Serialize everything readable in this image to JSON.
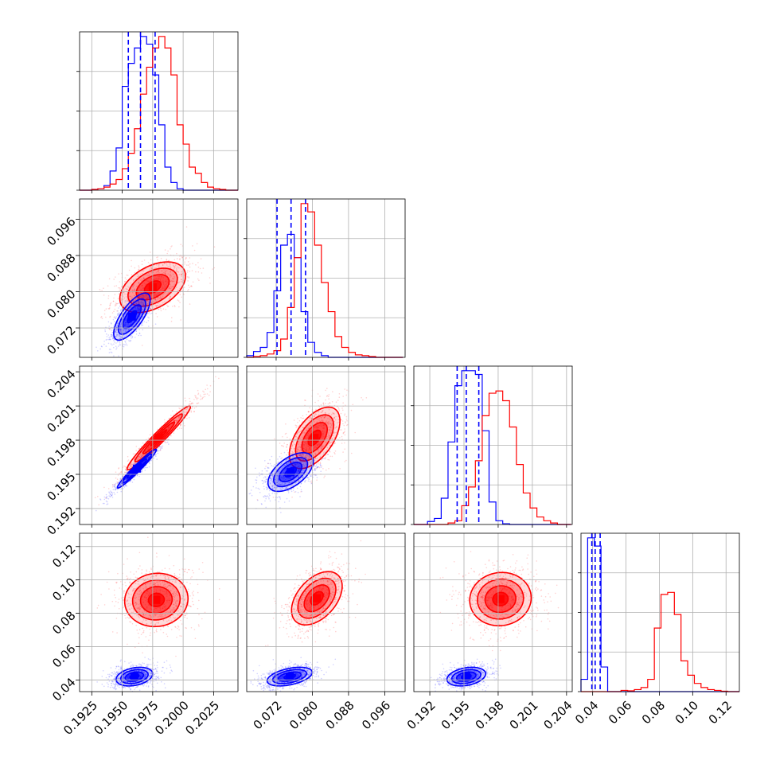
{
  "chart_data": {
    "type": "corner",
    "title": "",
    "grid": true,
    "series": [
      {
        "name": "",
        "color": "#0000ff"
      },
      {
        "name": "",
        "color": "#ff0000"
      }
    ],
    "parameters": [
      {
        "ylim": null,
        "range": [
          0.1915,
          0.2045
        ],
        "ticks": [
          0.1925,
          0.195,
          0.1975,
          0.2,
          0.2025
        ],
        "tick_labels": [
          "0.1925",
          "0.1950",
          "0.1975",
          "0.2000",
          "0.2025"
        ]
      },
      {
        "range": [
          0.0655,
          0.1005
        ],
        "ticks": [
          0.072,
          0.08,
          0.088,
          0.096
        ],
        "tick_labels": [
          "0.072",
          "0.080",
          "0.088",
          "0.096"
        ]
      },
      {
        "range": [
          0.1906,
          0.2045
        ],
        "ticks": [
          0.192,
          0.195,
          0.198,
          0.201,
          0.204
        ],
        "tick_labels": [
          "0.192",
          "0.195",
          "0.198",
          "0.201",
          "0.204"
        ]
      },
      {
        "range": [
          0.033,
          0.128
        ],
        "ticks": [
          0.04,
          0.06,
          0.08,
          0.1,
          0.12
        ],
        "tick_labels": [
          "0.04",
          "0.06",
          "0.08",
          "0.10",
          "0.12"
        ]
      }
    ],
    "marginals": [
      {
        "bins": [
          0.1915,
          0.192,
          0.1925,
          0.193,
          0.1935,
          0.194,
          0.1945,
          0.195,
          0.1955,
          0.196,
          0.1965,
          0.197,
          0.1975,
          0.198,
          0.1985,
          0.199,
          0.1995,
          0.2,
          0.2005,
          0.201,
          0.2015,
          0.202,
          0.2025,
          0.203,
          0.2035,
          0.204,
          0.2045
        ],
        "series": [
          {
            "values": [
              0,
              0,
              1,
              2,
              6,
              25,
              55,
              135,
              165,
              185,
              200,
              190,
              150,
              85,
              30,
              10,
              2,
              0,
              0,
              0,
              0,
              0,
              0,
              0,
              0,
              0
            ]
          },
          {
            "values": [
              0,
              0,
              1,
              2,
              4,
              8,
              14,
              28,
              48,
              80,
              125,
              160,
              185,
              200,
              185,
              150,
              85,
              60,
              30,
              22,
              10,
              4,
              2,
              1,
              0,
              0
            ]
          }
        ],
        "quantiles": [
          0.1955,
          0.1965,
          0.1977
        ]
      },
      {
        "bins": [
          0.0655,
          0.067,
          0.0685,
          0.07,
          0.0715,
          0.073,
          0.0745,
          0.076,
          0.0775,
          0.079,
          0.0805,
          0.082,
          0.0835,
          0.085,
          0.0865,
          0.088,
          0.0895,
          0.091,
          0.0925,
          0.094,
          0.0955,
          0.097,
          0.0985,
          0.1
        ],
        "series": [
          {
            "values": [
              2,
              7,
              12,
              30,
              80,
              135,
              148,
              120,
              55,
              18,
              6,
              2,
              0,
              0,
              0,
              0,
              0,
              0,
              0,
              0,
              0,
              0,
              0
            ]
          },
          {
            "values": [
              0,
              1,
              2,
              4,
              8,
              22,
              60,
              120,
              185,
              175,
              135,
              90,
              55,
              25,
              12,
              6,
              3,
              2,
              1,
              0,
              0,
              0,
              0
            ]
          }
        ],
        "quantiles": [
          0.0722,
          0.0753,
          0.0785
        ]
      },
      {
        "bins": [
          0.1906,
          0.1912,
          0.1918,
          0.1924,
          0.193,
          0.1936,
          0.1942,
          0.1948,
          0.1954,
          0.196,
          0.1966,
          0.1972,
          0.1978,
          0.1984,
          0.199,
          0.1996,
          0.2002,
          0.2008,
          0.2014,
          0.202,
          0.2026,
          0.2032,
          0.2038,
          0.2044
        ],
        "series": [
          {
            "values": [
              0,
              0,
              4,
              8,
              35,
              110,
              185,
              205,
              205,
              200,
              125,
              30,
              5,
              1,
              0,
              0,
              0,
              0,
              0,
              0,
              0,
              0,
              0
            ]
          },
          {
            "values": [
              0,
              0,
              0,
              0,
              0,
              2,
              5,
              25,
              50,
              85,
              145,
              175,
              178,
              165,
              130,
              80,
              42,
              22,
              10,
              5,
              2,
              0,
              0
            ]
          }
        ],
        "quantiles": [
          0.1944,
          0.1952,
          0.1963
        ]
      },
      {
        "bins": [
          0.033,
          0.037,
          0.041,
          0.045,
          0.049,
          0.053,
          0.057,
          0.061,
          0.065,
          0.069,
          0.073,
          0.077,
          0.081,
          0.085,
          0.089,
          0.093,
          0.097,
          0.101,
          0.105,
          0.109,
          0.113,
          0.117,
          0.121,
          0.125,
          0.128
        ],
        "series": [
          {
            "values": [
              30,
              375,
              355,
              60,
              0,
              0,
              0,
              0,
              0,
              0,
              0,
              0,
              0,
              0,
              0,
              0,
              0,
              0,
              0,
              0,
              0,
              0,
              0,
              0
            ]
          },
          {
            "values": [
              0,
              0,
              0,
              0,
              0,
              0,
              3,
              2,
              5,
              10,
              30,
              155,
              237,
              242,
              188,
              75,
              40,
              20,
              10,
              5,
              3,
              1,
              0,
              0
            ]
          }
        ],
        "quantiles": [
          0.0395,
          0.0415,
          0.0445
        ]
      }
    ],
    "pairs": [
      {
        "x": 0,
        "y": 1,
        "blue": {
          "mean": [
            0.1958,
            0.0745
          ],
          "sd": [
            0.00075,
            0.0026
          ],
          "rho": 0.72
        },
        "red": {
          "mean": [
            0.1975,
            0.081
          ],
          "sd": [
            0.00135,
            0.0028
          ],
          "rho": 0.45
        }
      },
      {
        "x": 0,
        "y": 2,
        "blue": {
          "mean": [
            0.1962,
            0.1955
          ],
          "sd": [
            0.0008,
            0.00085
          ],
          "rho": 0.97
        },
        "red": {
          "mean": [
            0.198,
            0.1982
          ],
          "sd": [
            0.0013,
            0.0014
          ],
          "rho": 0.97
        }
      },
      {
        "x": 1,
        "y": 2,
        "blue": {
          "mean": [
            0.0752,
            0.1952
          ],
          "sd": [
            0.0025,
            0.00085
          ],
          "rho": 0.55
        },
        "red": {
          "mean": [
            0.0805,
            0.1982
          ],
          "sd": [
            0.0028,
            0.00135
          ],
          "rho": 0.55
        }
      },
      {
        "x": 0,
        "y": 3,
        "blue": {
          "mean": [
            0.196,
            0.042
          ],
          "sd": [
            0.00075,
            0.0028
          ],
          "rho": 0.3
        },
        "red": {
          "mean": [
            0.1978,
            0.088
          ],
          "sd": [
            0.0013,
            0.008
          ],
          "rho": 0.05
        }
      },
      {
        "x": 1,
        "y": 3,
        "blue": {
          "mean": [
            0.075,
            0.042
          ],
          "sd": [
            0.0025,
            0.0028
          ],
          "rho": 0.45
        },
        "red": {
          "mean": [
            0.081,
            0.089
          ],
          "sd": [
            0.0028,
            0.008
          ],
          "rho": 0.45
        }
      },
      {
        "x": 2,
        "y": 3,
        "blue": {
          "mean": [
            0.1952,
            0.042
          ],
          "sd": [
            0.00085,
            0.0028
          ],
          "rho": 0.3
        },
        "red": {
          "mean": [
            0.1982,
            0.0885
          ],
          "sd": [
            0.00135,
            0.008
          ],
          "rho": 0.05
        }
      }
    ]
  }
}
